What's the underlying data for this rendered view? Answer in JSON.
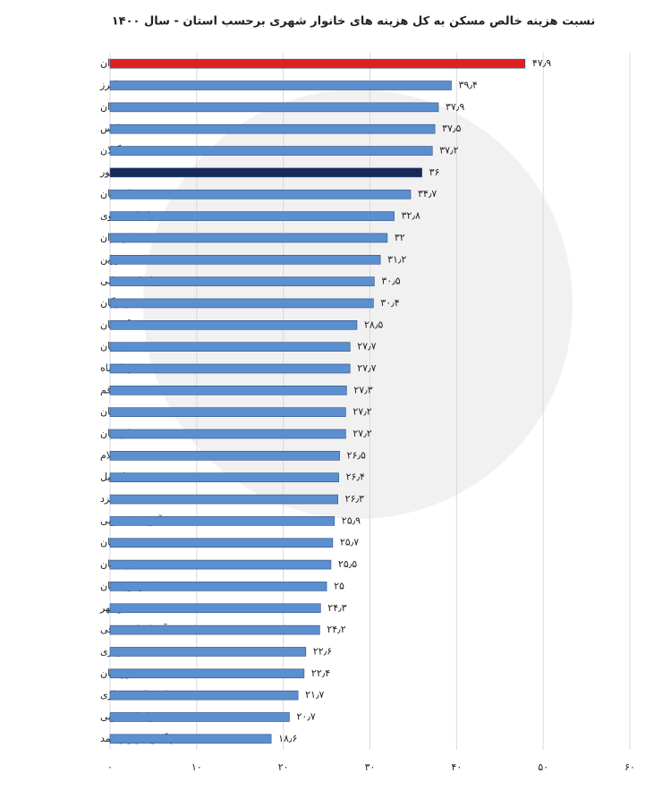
{
  "chart_data": {
    "type": "hbar",
    "title": "نسبت هزینه خالص مسکن به کل هزینه های خانوار شهری برحسب استان - سال ۱۴۰۰",
    "categories": [
      "تهران",
      "البرز",
      "همدان",
      "فارس",
      "گیلان",
      "کل کشور",
      "اصفهان",
      "خراسان رضوی",
      "مازندران",
      "قزوین",
      "خراسان شمالی",
      "هرمزگان",
      "گلستان",
      "زنجان",
      "کرمانشاه",
      "قم",
      "سمنان",
      "لرستان",
      "ایلام",
      "اردبیل",
      "یزد",
      "آذربایجان غربی",
      "کرمان",
      "کردستان",
      "سیستان وبلوچستان",
      "بوشهر",
      "آذربایجان شرقی",
      "مرکزی",
      "خوزستان",
      "چهارمحال وبختیاری",
      "خراسان جنوبی",
      "کهگیلویه وبویراحمد"
    ],
    "values": [
      47.9,
      39.4,
      37.9,
      37.5,
      37.2,
      36,
      34.7,
      32.8,
      32,
      31.2,
      30.5,
      30.4,
      28.5,
      27.7,
      27.7,
      27.3,
      27.2,
      27.2,
      26.5,
      26.4,
      26.3,
      25.9,
      25.7,
      25.5,
      25,
      24.3,
      24.2,
      22.6,
      22.4,
      21.7,
      20.7,
      18.6
    ],
    "value_labels": [
      "۴۷٫۹",
      "۳۹٫۴",
      "۳۷٫۹",
      "۳۷٫۵",
      "۳۷٫۲",
      "۳۶",
      "۳۴٫۷",
      "۳۲٫۸",
      "۳۲",
      "۳۱٫۲",
      "۳۰٫۵",
      "۳۰٫۴",
      "۲۸٫۵",
      "۲۷٫۷",
      "۲۷٫۷",
      "۲۷٫۳",
      "۲۷٫۲",
      "۲۷٫۲",
      "۲۶٫۵",
      "۲۶٫۴",
      "۲۶٫۳",
      "۲۵٫۹",
      "۲۵٫۷",
      "۲۵٫۵",
      "۲۵",
      "۲۴٫۳",
      "۲۴٫۲",
      "۲۲٫۶",
      "۲۲٫۴",
      "۲۱٫۷",
      "۲۰٫۷",
      "۱۸٫۶"
    ],
    "color": "#5b8fcf",
    "highlight_colors": {
      "0": "#e02020",
      "5": "#172a55"
    },
    "xlim": [
      0,
      60
    ],
    "xticks": [
      {
        "value": 0,
        "label": "۰"
      },
      {
        "value": 10,
        "label": "۱۰"
      },
      {
        "value": 20,
        "label": "۲۰"
      },
      {
        "value": 30,
        "label": "۳۰"
      },
      {
        "value": 40,
        "label": "۴۰"
      },
      {
        "value": 50,
        "label": "۵۰"
      },
      {
        "value": 60,
        "label": "۶۰"
      }
    ],
    "grid": true
  }
}
